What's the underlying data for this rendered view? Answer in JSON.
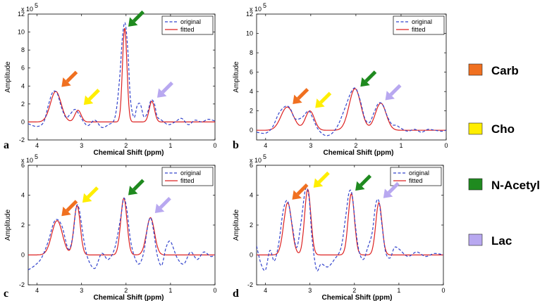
{
  "chart_data": [
    {
      "panel": "a",
      "type": "line",
      "xlabel": "Chemical Shift (ppm)",
      "ylabel": "Amplitude",
      "exponent": "x 10",
      "exponent_power": "5",
      "xlim": [
        4.2,
        0
      ],
      "ylim": [
        -2,
        12
      ],
      "xticks": [
        4,
        3,
        2,
        1,
        0
      ],
      "yticks": [
        -2,
        0,
        2,
        4,
        6,
        8,
        10,
        12
      ],
      "legend_position": "top-right",
      "grid": false,
      "series": [
        {
          "name": "original",
          "style": "dashed",
          "color": "#3344cc",
          "x": [
            4.2,
            4.0,
            3.85,
            3.75,
            3.65,
            3.55,
            3.45,
            3.35,
            3.25,
            3.15,
            3.05,
            2.95,
            2.85,
            2.7,
            2.55,
            2.4,
            2.25,
            2.15,
            2.08,
            2.02,
            1.96,
            1.9,
            1.82,
            1.75,
            1.68,
            1.6,
            1.52,
            1.45,
            1.4,
            1.35,
            1.3,
            1.2,
            1.05,
            0.9,
            0.75,
            0.6,
            0.45,
            0.3,
            0.15,
            0.0
          ],
          "y": [
            -0.2,
            -0.5,
            0.0,
            1.8,
            3.3,
            3.2,
            1.6,
            0.5,
            0.9,
            1.4,
            0.8,
            0.0,
            -0.4,
            0.2,
            -0.6,
            -0.3,
            0.5,
            4.5,
            9.5,
            11.0,
            8.0,
            2.5,
            0.5,
            1.8,
            2.0,
            0.6,
            1.0,
            2.3,
            2.4,
            1.8,
            0.6,
            0.2,
            -0.3,
            0.0,
            0.4,
            -0.3,
            0.2,
            0.0,
            0.3,
            0.1
          ]
        },
        {
          "name": "fitted",
          "style": "solid",
          "color": "#dd2222",
          "peaks": [
            [
              3.58,
              3.4,
              0.12
            ],
            [
              3.08,
              1.3,
              0.07
            ],
            [
              2.03,
              10.5,
              0.05
            ],
            [
              1.42,
              2.3,
              0.06
            ]
          ]
        }
      ],
      "arrows": [
        {
          "label": "Carb",
          "color": "#f07020"
        },
        {
          "label": "Cho",
          "color": "#ffee00"
        },
        {
          "label": "N-Acetyl",
          "color": "#1f8a1f"
        },
        {
          "label": "Lac",
          "color": "#b8a8f0"
        }
      ]
    },
    {
      "panel": "b",
      "type": "line",
      "xlabel": "Chemical Shift (ppm)",
      "ylabel": "Amplitude",
      "exponent": "x 10",
      "exponent_power": "5",
      "xlim": [
        4.2,
        0
      ],
      "ylim": [
        -1,
        12
      ],
      "xticks": [
        4,
        3,
        2,
        1,
        0
      ],
      "yticks": [
        0,
        2,
        4,
        6,
        8,
        10,
        12
      ],
      "legend_position": "top-right",
      "grid": false,
      "series": [
        {
          "name": "original",
          "style": "dashed",
          "color": "#3344cc",
          "x": [
            4.2,
            4.0,
            3.85,
            3.7,
            3.55,
            3.45,
            3.35,
            3.2,
            3.05,
            2.95,
            2.85,
            2.7,
            2.55,
            2.4,
            2.25,
            2.1,
            2.0,
            1.9,
            1.8,
            1.7,
            1.6,
            1.5,
            1.4,
            1.3,
            1.2,
            1.1,
            1.0,
            0.85,
            0.7,
            0.55,
            0.4,
            0.25,
            0.1,
            0.0
          ],
          "y": [
            -0.2,
            -0.3,
            0.3,
            1.8,
            2.5,
            2.2,
            1.2,
            1.3,
            2.0,
            1.2,
            0.2,
            -0.5,
            -0.4,
            0.5,
            2.2,
            4.0,
            4.3,
            3.0,
            1.2,
            0.8,
            1.8,
            2.8,
            2.6,
            1.4,
            0.6,
            0.5,
            0.2,
            -0.1,
            0.1,
            -0.2,
            0.1,
            0.0,
            -0.1,
            0.0
          ]
        },
        {
          "name": "fitted",
          "style": "solid",
          "color": "#dd2222",
          "peaks": [
            [
              3.52,
              2.4,
              0.14
            ],
            [
              3.02,
              2.0,
              0.1
            ],
            [
              2.02,
              4.3,
              0.13
            ],
            [
              1.45,
              2.8,
              0.12
            ]
          ]
        }
      ],
      "arrows": [
        {
          "label": "Carb",
          "color": "#f07020"
        },
        {
          "label": "Cho",
          "color": "#ffee00"
        },
        {
          "label": "N-Acetyl",
          "color": "#1f8a1f"
        },
        {
          "label": "Lac",
          "color": "#b8a8f0"
        }
      ]
    },
    {
      "panel": "c",
      "type": "line",
      "xlabel": "Chemical Shift (ppm)",
      "ylabel": "Amplitude",
      "exponent": "x 10",
      "exponent_power": "5",
      "xlim": [
        4.2,
        0
      ],
      "ylim": [
        -2,
        6
      ],
      "xticks": [
        4,
        3,
        2,
        1,
        0
      ],
      "yticks": [
        -2,
        0,
        2,
        4,
        6
      ],
      "legend_position": "top-right",
      "grid": false,
      "series": [
        {
          "name": "original",
          "style": "dashed",
          "color": "#3344cc",
          "x": [
            4.2,
            4.05,
            3.9,
            3.75,
            3.6,
            3.45,
            3.3,
            3.2,
            3.12,
            3.05,
            2.95,
            2.85,
            2.7,
            2.55,
            2.4,
            2.25,
            2.12,
            2.05,
            1.98,
            1.9,
            1.8,
            1.7,
            1.6,
            1.52,
            1.45,
            1.38,
            1.3,
            1.2,
            1.1,
            1.0,
            0.85,
            0.7,
            0.55,
            0.4,
            0.25,
            0.1,
            0.0
          ],
          "y": [
            -1.0,
            -0.7,
            -0.2,
            0.9,
            2.3,
            2.0,
            0.4,
            1.2,
            3.2,
            3.0,
            1.0,
            -0.3,
            -0.9,
            0.1,
            -0.3,
            0.5,
            2.5,
            3.8,
            3.0,
            1.0,
            -0.2,
            -0.6,
            0.2,
            1.8,
            2.5,
            1.6,
            0.0,
            -0.7,
            0.5,
            0.9,
            -0.2,
            -0.6,
            0.2,
            -0.3,
            0.2,
            -0.1,
            0.0
          ]
        },
        {
          "name": "fitted",
          "style": "solid",
          "color": "#dd2222",
          "peaks": [
            [
              3.55,
              2.3,
              0.12
            ],
            [
              3.1,
              3.3,
              0.07
            ],
            [
              2.05,
              3.8,
              0.07
            ],
            [
              1.45,
              2.5,
              0.09
            ]
          ]
        }
      ],
      "arrows": [
        {
          "label": "Carb",
          "color": "#f07020"
        },
        {
          "label": "Cho",
          "color": "#ffee00"
        },
        {
          "label": "N-Acetyl",
          "color": "#1f8a1f"
        },
        {
          "label": "Lac",
          "color": "#b8a8f0"
        }
      ]
    },
    {
      "panel": "d",
      "type": "line",
      "xlabel": "Chemical Shift (ppm)",
      "ylabel": "Amplitude",
      "exponent": "x 10",
      "exponent_power": "5",
      "xlim": [
        4.2,
        0
      ],
      "ylim": [
        -2,
        6
      ],
      "xticks": [
        4,
        3,
        2,
        1,
        0
      ],
      "yticks": [
        -2,
        0,
        2,
        4,
        6
      ],
      "legend_position": "top-right",
      "grid": false,
      "series": [
        {
          "name": "original",
          "style": "dashed",
          "color": "#3344cc",
          "x": [
            4.2,
            4.1,
            4.0,
            3.9,
            3.8,
            3.7,
            3.6,
            3.5,
            3.4,
            3.3,
            3.2,
            3.1,
            3.02,
            2.95,
            2.85,
            2.75,
            2.6,
            2.45,
            2.3,
            2.2,
            2.12,
            2.05,
            1.98,
            1.9,
            1.8,
            1.7,
            1.6,
            1.52,
            1.45,
            1.38,
            1.3,
            1.2,
            1.1,
            1.0,
            0.8,
            0.6,
            0.4,
            0.2,
            0.0
          ],
          "y": [
            0.6,
            -0.6,
            -1.0,
            0.3,
            -0.4,
            0.8,
            3.0,
            3.6,
            2.0,
            0.5,
            2.2,
            4.4,
            3.8,
            1.0,
            -1.0,
            -0.6,
            -0.8,
            -0.3,
            0.5,
            2.5,
            4.2,
            4.0,
            2.0,
            0.3,
            -0.3,
            0.5,
            1.5,
            3.4,
            3.6,
            2.0,
            0.2,
            -0.2,
            0.5,
            0.4,
            -0.1,
            0.2,
            -0.1,
            0.1,
            0.0
          ]
        },
        {
          "name": "fitted",
          "style": "solid",
          "color": "#dd2222",
          "peaks": [
            [
              3.5,
              3.5,
              0.09
            ],
            [
              3.05,
              4.4,
              0.07
            ],
            [
              2.07,
              4.1,
              0.07
            ],
            [
              1.45,
              3.5,
              0.07
            ]
          ]
        }
      ],
      "arrows": [
        {
          "label": "Carb",
          "color": "#f07020"
        },
        {
          "label": "Cho",
          "color": "#ffee00"
        },
        {
          "label": "N-Acetyl",
          "color": "#1f8a1f"
        },
        {
          "label": "Lac",
          "color": "#b8a8f0"
        }
      ]
    }
  ],
  "key": [
    {
      "label": "Carb",
      "color": "#f07020"
    },
    {
      "label": "Cho",
      "color": "#ffee00"
    },
    {
      "label": "N-Acetyl",
      "color": "#1f8a1f"
    },
    {
      "label": "Lac",
      "color": "#b8a8f0"
    }
  ]
}
